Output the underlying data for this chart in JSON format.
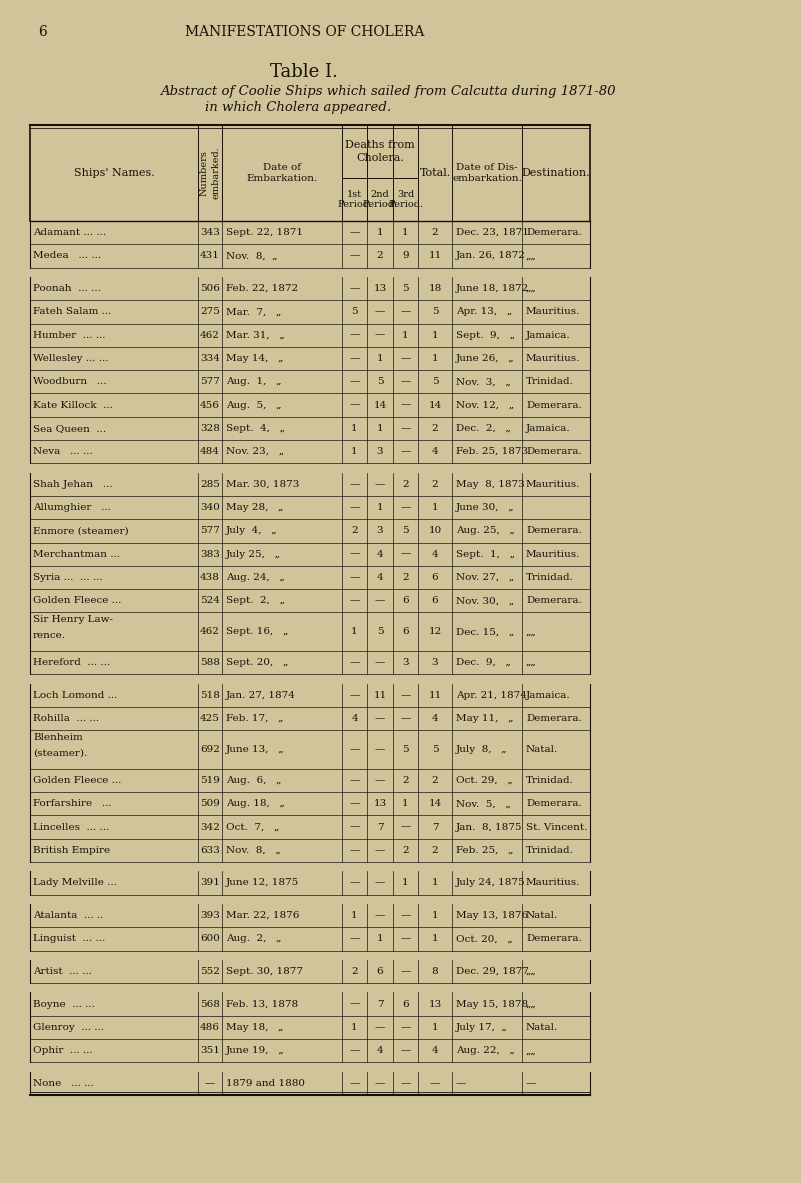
{
  "bg_color": "#cfc49a",
  "text_color": "#1a1008",
  "page_num": "6",
  "header_text": "MANIFESTATIONS OF CHOLERA",
  "title": "Table I.",
  "subtitle_line1": "Abstract of Coolie Ships which sailed from Calcutta during 1871-80",
  "subtitle_line2": "in which Cholera appeared.",
  "rows": [
    {
      "name": "Adamant ... ...",
      "num": "343",
      "emb_date": "Sept. 22, 1871",
      "p1": "—",
      "p2": "1",
      "p3": "1",
      "total": "2",
      "dis_date": "Dec. 23, 1871",
      "dest": "Demerara.",
      "spacer_before": false,
      "two_line": false
    },
    {
      "name": "Medea   ... ...",
      "num": "431",
      "emb_date": "Nov.  8,  „",
      "p1": "—",
      "p2": "2",
      "p3": "9",
      "total": "11",
      "dis_date": "Jan. 26, 1872",
      "dest": "„„",
      "spacer_before": false,
      "two_line": false
    },
    {
      "name": "Poonah  ... ...",
      "num": "506",
      "emb_date": "Feb. 22, 1872",
      "p1": "—",
      "p2": "13",
      "p3": "5",
      "total": "18",
      "dis_date": "June 18, 1872",
      "dest": "„„",
      "spacer_before": true,
      "two_line": false
    },
    {
      "name": "Fateh Salam ...",
      "num": "275",
      "emb_date": "Mar.  7,   „",
      "p1": "5",
      "p2": "—",
      "p3": "—",
      "total": "5",
      "dis_date": "Apr. 13,   „",
      "dest": "Mauritius.",
      "spacer_before": false,
      "two_line": false
    },
    {
      "name": "Humber  ... ...",
      "num": "462",
      "emb_date": "Mar. 31,   „",
      "p1": "—",
      "p2": "—",
      "p3": "1",
      "total": "1",
      "dis_date": "Sept.  9,   „",
      "dest": "Jamaica.",
      "spacer_before": false,
      "two_line": false
    },
    {
      "name": "Wellesley ... ...",
      "num": "334",
      "emb_date": "May 14,   „",
      "p1": "—",
      "p2": "1",
      "p3": "—",
      "total": "1",
      "dis_date": "June 26,   „",
      "dest": "Mauritius.",
      "spacer_before": false,
      "two_line": false
    },
    {
      "name": "Woodburn   ...",
      "num": "577",
      "emb_date": "Aug.  1,   „",
      "p1": "—",
      "p2": "5",
      "p3": "—",
      "total": "5",
      "dis_date": "Nov.  3,   „",
      "dest": "Trinidad.",
      "spacer_before": false,
      "two_line": false
    },
    {
      "name": "Kate Killock  ...",
      "num": "456",
      "emb_date": "Aug.  5,   „",
      "p1": "—",
      "p2": "14",
      "p3": "—",
      "total": "14",
      "dis_date": "Nov. 12,   „",
      "dest": "Demerara.",
      "spacer_before": false,
      "two_line": false
    },
    {
      "name": "Sea Queen  ...",
      "num": "328",
      "emb_date": "Sept.  4,   „",
      "p1": "1",
      "p2": "1",
      "p3": "—",
      "total": "2",
      "dis_date": "Dec.  2,   „",
      "dest": "Jamaica.",
      "spacer_before": false,
      "two_line": false
    },
    {
      "name": "Neva   ... ...",
      "num": "484",
      "emb_date": "Nov. 23,   „",
      "p1": "1",
      "p2": "3",
      "p3": "—",
      "total": "4",
      "dis_date": "Feb. 25, 1873",
      "dest": "Demerara.",
      "spacer_before": false,
      "two_line": false
    },
    {
      "name": "Shah Jehan   ...",
      "num": "285",
      "emb_date": "Mar. 30, 1873",
      "p1": "—",
      "p2": "—",
      "p3": "2",
      "total": "2",
      "dis_date": "May  8, 1873",
      "dest": "Mauritius.",
      "spacer_before": true,
      "two_line": false
    },
    {
      "name": "Allumghier   ...",
      "num": "340",
      "emb_date": "May 28,   „",
      "p1": "—",
      "p2": "1",
      "p3": "—",
      "total": "1",
      "dis_date": "June 30,   „",
      "dest": "",
      "spacer_before": false,
      "two_line": false
    },
    {
      "name": "Enmore (steamer)",
      "num": "577",
      "emb_date": "July  4,   „",
      "p1": "2",
      "p2": "3",
      "p3": "5",
      "total": "10",
      "dis_date": "Aug. 25,   „",
      "dest": "Demerara.",
      "spacer_before": false,
      "two_line": false
    },
    {
      "name": "Merchantman ...",
      "num": "383",
      "emb_date": "July 25,   „",
      "p1": "—",
      "p2": "4",
      "p3": "—",
      "total": "4",
      "dis_date": "Sept.  1,   „",
      "dest": "Mauritius.",
      "spacer_before": false,
      "two_line": false
    },
    {
      "name": "Syria ...  ... ...",
      "num": "438",
      "emb_date": "Aug. 24,   „",
      "p1": "—",
      "p2": "4",
      "p3": "2",
      "total": "6",
      "dis_date": "Nov. 27,   „",
      "dest": "Trinidad.",
      "spacer_before": false,
      "two_line": false
    },
    {
      "name": "Golden Fleece ...",
      "num": "524",
      "emb_date": "Sept.  2,   „",
      "p1": "—",
      "p2": "—",
      "p3": "6",
      "total": "6",
      "dis_date": "Nov. 30,   „",
      "dest": "Demerara.",
      "spacer_before": false,
      "two_line": false
    },
    {
      "name": "Sir Henry Law-\nrence.",
      "num": "462",
      "emb_date": "Sept. 16,   „",
      "p1": "1",
      "p2": "5",
      "p3": "6",
      "total": "12",
      "dis_date": "Dec. 15,   „",
      "dest": "„„",
      "spacer_before": false,
      "two_line": true
    },
    {
      "name": "Hereford  ... ...",
      "num": "588",
      "emb_date": "Sept. 20,   „",
      "p1": "—",
      "p2": "—",
      "p3": "3",
      "total": "3",
      "dis_date": "Dec.  9,   „",
      "dest": "„„",
      "spacer_before": false,
      "two_line": false
    },
    {
      "name": "Loch Lomond ...",
      "num": "518",
      "emb_date": "Jan. 27, 1874",
      "p1": "—",
      "p2": "11",
      "p3": "—",
      "total": "11",
      "dis_date": "Apr. 21, 1874",
      "dest": "Jamaica.",
      "spacer_before": true,
      "two_line": false
    },
    {
      "name": "Rohilla  ... ...",
      "num": "425",
      "emb_date": "Feb. 17,   „",
      "p1": "4",
      "p2": "—",
      "p3": "—",
      "total": "4",
      "dis_date": "May 11,   „",
      "dest": "Demerara.",
      "spacer_before": false,
      "two_line": false
    },
    {
      "name": "Blenheim\n(steamer).",
      "num": "692",
      "emb_date": "June 13,   „",
      "p1": "—",
      "p2": "—",
      "p3": "5",
      "total": "5",
      "dis_date": "July  8,   „",
      "dest": "Natal.",
      "spacer_before": false,
      "two_line": true
    },
    {
      "name": "Golden Fleece ...",
      "num": "519",
      "emb_date": "Aug.  6,   „",
      "p1": "—",
      "p2": "—",
      "p3": "2",
      "total": "2",
      "dis_date": "Oct. 29,   „",
      "dest": "Trinidad.",
      "spacer_before": false,
      "two_line": false
    },
    {
      "name": "Forfarshire   ...",
      "num": "509",
      "emb_date": "Aug. 18,   „",
      "p1": "—",
      "p2": "13",
      "p3": "1",
      "total": "14",
      "dis_date": "Nov.  5,   „",
      "dest": "Demerara.",
      "spacer_before": false,
      "two_line": false
    },
    {
      "name": "Lincelles  ... ...",
      "num": "342",
      "emb_date": "Oct.  7,   „",
      "p1": "—",
      "p2": "7",
      "p3": "—",
      "total": "7",
      "dis_date": "Jan.  8, 1875",
      "dest": "St. Vincent.",
      "spacer_before": false,
      "two_line": false
    },
    {
      "name": "British Empire",
      "num": "633",
      "emb_date": "Nov.  8,   „",
      "p1": "—",
      "p2": "—",
      "p3": "2",
      "total": "2",
      "dis_date": "Feb. 25,   „",
      "dest": "Trinidad.",
      "spacer_before": false,
      "two_line": false
    },
    {
      "name": "Lady Melville ...",
      "num": "391",
      "emb_date": "June 12, 1875",
      "p1": "—",
      "p2": "—",
      "p3": "1",
      "total": "1",
      "dis_date": "July 24, 1875",
      "dest": "Mauritius.",
      "spacer_before": true,
      "two_line": false
    },
    {
      "name": "Atalanta  ... ..",
      "num": "393",
      "emb_date": "Mar. 22, 1876",
      "p1": "1",
      "p2": "—",
      "p3": "—",
      "total": "1",
      "dis_date": "May 13, 1876",
      "dest": "Natal.",
      "spacer_before": true,
      "two_line": false
    },
    {
      "name": "Linguist  ... ...",
      "num": "600",
      "emb_date": "Aug.  2,   „",
      "p1": "—",
      "p2": "1",
      "p3": "—",
      "total": "1",
      "dis_date": "Oct. 20,   „",
      "dest": "Demerara.",
      "spacer_before": false,
      "two_line": false
    },
    {
      "name": "Artist  ... ...",
      "num": "552",
      "emb_date": "Sept. 30, 1877",
      "p1": "2",
      "p2": "6",
      "p3": "—",
      "total": "8",
      "dis_date": "Dec. 29, 1877",
      "dest": "„„",
      "spacer_before": true,
      "two_line": false
    },
    {
      "name": "Boyne  ... ...",
      "num": "568",
      "emb_date": "Feb. 13, 1878",
      "p1": "—",
      "p2": "7",
      "p3": "6",
      "total": "13",
      "dis_date": "May 15, 1878",
      "dest": "„„",
      "spacer_before": true,
      "two_line": false
    },
    {
      "name": "Glenroy  ... ...",
      "num": "486",
      "emb_date": "May 18,   „",
      "p1": "1",
      "p2": "—",
      "p3": "—",
      "total": "1",
      "dis_date": "July 17,  „",
      "dest": "Natal.",
      "spacer_before": false,
      "two_line": false
    },
    {
      "name": "Ophir  ... ...",
      "num": "351",
      "emb_date": "June 19,   „",
      "p1": "—",
      "p2": "4",
      "p3": "—",
      "total": "4",
      "dis_date": "Aug. 22,   „",
      "dest": "„„",
      "spacer_before": false,
      "two_line": false
    },
    {
      "name": "None   ... ...",
      "num": "—",
      "emb_date": "1879 and 1880",
      "p1": "—",
      "p2": "—",
      "p3": "—",
      "total": "—",
      "dis_date": "—",
      "dest": "—",
      "spacer_before": true,
      "two_line": false
    }
  ]
}
